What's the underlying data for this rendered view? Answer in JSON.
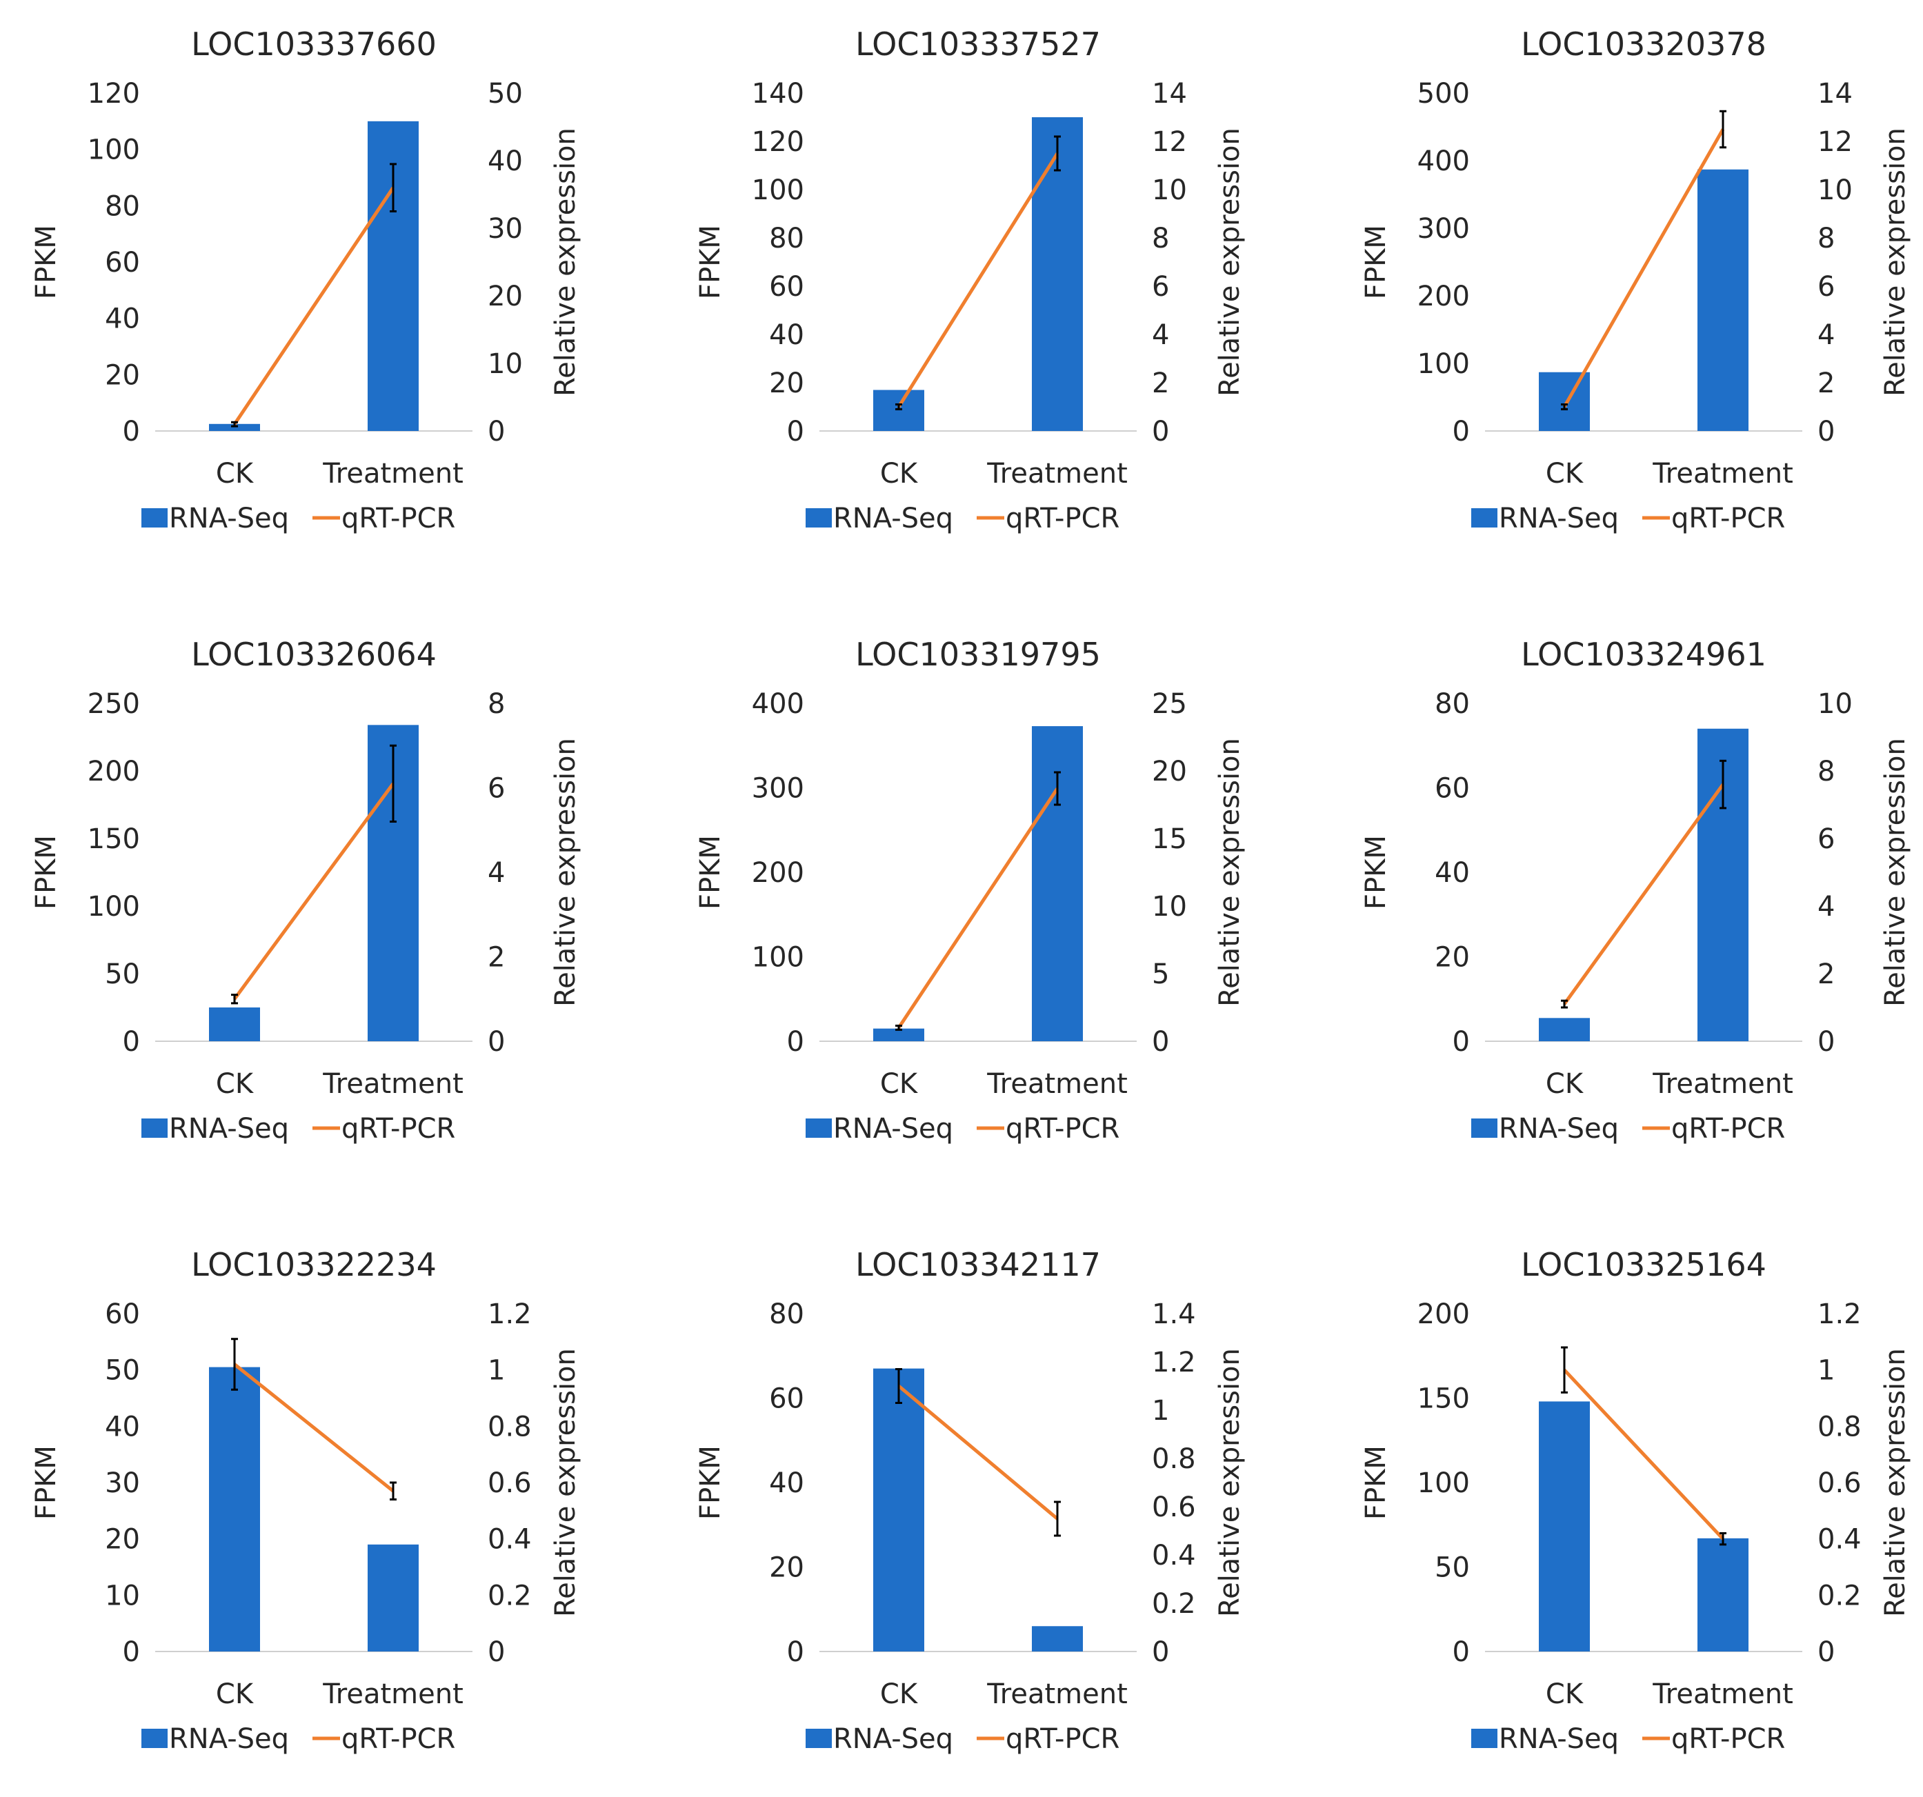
{
  "colors": {
    "bar": "#1F6FC8",
    "line": "#F07F2E",
    "axis": "#cfcfcf",
    "text": "#262626",
    "error": "#000000"
  },
  "chart_data": [
    {
      "type": "bar+line",
      "title": "LOC103337660",
      "categories": [
        "CK",
        "Treatment"
      ],
      "ylabel": "FPKM",
      "y2label": "Relative expression",
      "ylim": [
        0,
        120
      ],
      "yticks": [
        0,
        20,
        40,
        60,
        80,
        100,
        120
      ],
      "y2lim": [
        0,
        50
      ],
      "y2ticks": [
        0,
        10,
        20,
        30,
        40,
        50
      ],
      "series": [
        {
          "name": "RNA-Seq",
          "kind": "bar",
          "axis": "left",
          "values": [
            2.5,
            110
          ]
        },
        {
          "name": "qRT-PCR",
          "kind": "line",
          "axis": "right",
          "values": [
            1,
            36
          ],
          "errors": [
            0.3,
            3.5
          ]
        }
      ]
    },
    {
      "type": "bar+line",
      "title": "LOC103337527",
      "categories": [
        "CK",
        "Treatment"
      ],
      "ylabel": "FPKM",
      "y2label": "Relative expression",
      "ylim": [
        0,
        140
      ],
      "yticks": [
        0,
        20,
        40,
        60,
        80,
        100,
        120,
        140
      ],
      "y2lim": [
        0,
        14
      ],
      "y2ticks": [
        0,
        2,
        4,
        6,
        8,
        10,
        12,
        14
      ],
      "series": [
        {
          "name": "RNA-Seq",
          "kind": "bar",
          "axis": "left",
          "values": [
            17,
            130
          ]
        },
        {
          "name": "qRT-PCR",
          "kind": "line",
          "axis": "right",
          "values": [
            1,
            11.5
          ],
          "errors": [
            0.1,
            0.7
          ]
        }
      ]
    },
    {
      "type": "bar+line",
      "title": "LOC103320378",
      "categories": [
        "CK",
        "Treatment"
      ],
      "ylabel": "FPKM",
      "y2label": "Relative expression",
      "ylim": [
        0,
        500
      ],
      "yticks": [
        0,
        100,
        200,
        300,
        400,
        500
      ],
      "y2lim": [
        0,
        14
      ],
      "y2ticks": [
        0,
        2,
        4,
        6,
        8,
        10,
        12,
        14
      ],
      "series": [
        {
          "name": "RNA-Seq",
          "kind": "bar",
          "axis": "left",
          "values": [
            87,
            387
          ]
        },
        {
          "name": "qRT-PCR",
          "kind": "line",
          "axis": "right",
          "values": [
            1,
            12.5
          ],
          "errors": [
            0.1,
            0.75
          ]
        }
      ]
    },
    {
      "type": "bar+line",
      "title": "LOC103326064",
      "categories": [
        "CK",
        "Treatment"
      ],
      "ylabel": "FPKM",
      "y2label": "Relative expression",
      "ylim": [
        0,
        250
      ],
      "yticks": [
        0,
        50,
        100,
        150,
        200,
        250
      ],
      "y2lim": [
        0,
        8
      ],
      "y2ticks": [
        0,
        2,
        4,
        6,
        8
      ],
      "series": [
        {
          "name": "RNA-Seq",
          "kind": "bar",
          "axis": "left",
          "values": [
            25,
            234
          ]
        },
        {
          "name": "qRT-PCR",
          "kind": "line",
          "axis": "right",
          "values": [
            1,
            6.1
          ],
          "errors": [
            0.1,
            0.9
          ]
        }
      ]
    },
    {
      "type": "bar+line",
      "title": "LOC103319795",
      "categories": [
        "CK",
        "Treatment"
      ],
      "ylabel": "FPKM",
      "y2label": "Relative expression",
      "ylim": [
        0,
        400
      ],
      "yticks": [
        0,
        100,
        200,
        300,
        400
      ],
      "y2lim": [
        0,
        25
      ],
      "y2ticks": [
        0,
        5,
        10,
        15,
        20,
        25
      ],
      "series": [
        {
          "name": "RNA-Seq",
          "kind": "bar",
          "axis": "left",
          "values": [
            15,
            373
          ]
        },
        {
          "name": "qRT-PCR",
          "kind": "line",
          "axis": "right",
          "values": [
            1,
            18.7
          ],
          "errors": [
            0.15,
            1.2
          ]
        }
      ]
    },
    {
      "type": "bar+line",
      "title": "LOC103324961",
      "categories": [
        "CK",
        "Treatment"
      ],
      "ylabel": "FPKM",
      "y2label": "Relative expression",
      "ylim": [
        0,
        80
      ],
      "yticks": [
        0,
        20,
        40,
        60,
        80
      ],
      "y2lim": [
        0,
        10
      ],
      "y2ticks": [
        0,
        2,
        4,
        6,
        8,
        10
      ],
      "series": [
        {
          "name": "RNA-Seq",
          "kind": "bar",
          "axis": "left",
          "values": [
            5.5,
            74
          ]
        },
        {
          "name": "qRT-PCR",
          "kind": "line",
          "axis": "right",
          "values": [
            1.1,
            7.6
          ],
          "errors": [
            0.1,
            0.7
          ]
        }
      ]
    },
    {
      "type": "bar+line",
      "title": "LOC103322234",
      "categories": [
        "CK",
        "Treatment"
      ],
      "ylabel": "FPKM",
      "y2label": "Relative expression",
      "ylim": [
        0,
        60
      ],
      "yticks": [
        0,
        10,
        20,
        30,
        40,
        50,
        60
      ],
      "y2lim": [
        0,
        1.2
      ],
      "y2ticks": [
        0,
        0.2,
        0.4,
        0.6,
        0.8,
        1,
        1.2
      ],
      "series": [
        {
          "name": "RNA-Seq",
          "kind": "bar",
          "axis": "left",
          "values": [
            50.5,
            19
          ]
        },
        {
          "name": "qRT-PCR",
          "kind": "line",
          "axis": "right",
          "values": [
            1.02,
            0.57
          ],
          "errors": [
            0.09,
            0.03
          ]
        }
      ]
    },
    {
      "type": "bar+line",
      "title": "LOC103342117",
      "categories": [
        "CK",
        "Treatment"
      ],
      "ylabel": "FPKM",
      "y2label": "Relative expression",
      "ylim": [
        0,
        80
      ],
      "yticks": [
        0,
        20,
        40,
        60,
        80
      ],
      "y2lim": [
        0,
        1.4
      ],
      "y2ticks": [
        0,
        0.2,
        0.4,
        0.6,
        0.8,
        1,
        1.2,
        1.4
      ],
      "series": [
        {
          "name": "RNA-Seq",
          "kind": "bar",
          "axis": "left",
          "values": [
            67,
            6
          ]
        },
        {
          "name": "qRT-PCR",
          "kind": "line",
          "axis": "right",
          "values": [
            1.1,
            0.55
          ],
          "errors": [
            0.07,
            0.07
          ]
        }
      ]
    },
    {
      "type": "bar+line",
      "title": "LOC103325164",
      "categories": [
        "CK",
        "Treatment"
      ],
      "ylabel": "FPKM",
      "y2label": "Relative expression",
      "ylim": [
        0,
        200
      ],
      "yticks": [
        0,
        50,
        100,
        150,
        200
      ],
      "y2lim": [
        0,
        1.2
      ],
      "y2ticks": [
        0,
        0.2,
        0.4,
        0.6,
        0.8,
        1,
        1.2
      ],
      "series": [
        {
          "name": "RNA-Seq",
          "kind": "bar",
          "axis": "left",
          "values": [
            148,
            67
          ]
        },
        {
          "name": "qRT-PCR",
          "kind": "line",
          "axis": "right",
          "values": [
            1,
            0.4
          ],
          "errors": [
            0.08,
            0.02
          ]
        }
      ]
    }
  ]
}
